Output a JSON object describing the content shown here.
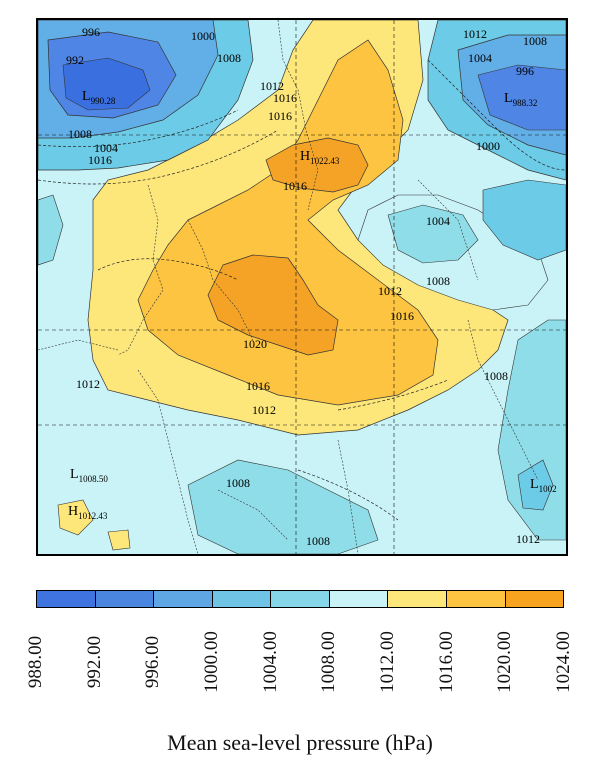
{
  "map": {
    "contour_labels": [
      "996",
      "1000",
      "1008",
      "1012",
      "992",
      "1004",
      "1008",
      "1016",
      "1012",
      "1008",
      "1004",
      "996",
      "1000",
      "1016",
      "1004",
      "1008",
      "1012",
      "1016",
      "1020",
      "1016",
      "1012",
      "1012",
      "1008",
      "1008",
      "1008",
      "1012",
      "1016",
      "1016"
    ],
    "centers": [
      {
        "letter": "L",
        "value": "990.28"
      },
      {
        "letter": "L",
        "value": "988.32"
      },
      {
        "letter": "H",
        "value": "1022.43"
      },
      {
        "letter": "L",
        "value": "1008.50"
      },
      {
        "letter": "H",
        "value": "1012.43"
      },
      {
        "letter": "L",
        "value": "1002"
      }
    ],
    "colors": {
      "bg": "#c9f3f7",
      "c988": "#3a6fe0",
      "c992": "#4f86e6",
      "c996": "#62aee6",
      "c1000": "#6ccbe6",
      "c1004": "#8fdde8",
      "c1008": "#c9f3f7",
      "c1012": "#fde77a",
      "c1016": "#fcc440",
      "c1020": "#f4a326"
    }
  },
  "legend": {
    "title": "Mean sea-level pressure (hPa)",
    "tick_labels": [
      "988.00",
      "992.00",
      "996.00",
      "1000.00",
      "1004.00",
      "1008.00",
      "1012.00",
      "1016.00",
      "1020.00",
      "1024.00"
    ],
    "colors": [
      "#3e73e0",
      "#4a86e0",
      "#5ea6e4",
      "#6fc4e6",
      "#86d6e9",
      "#c9f3f7",
      "#fde77a",
      "#fcc440",
      "#f7a31f"
    ]
  }
}
